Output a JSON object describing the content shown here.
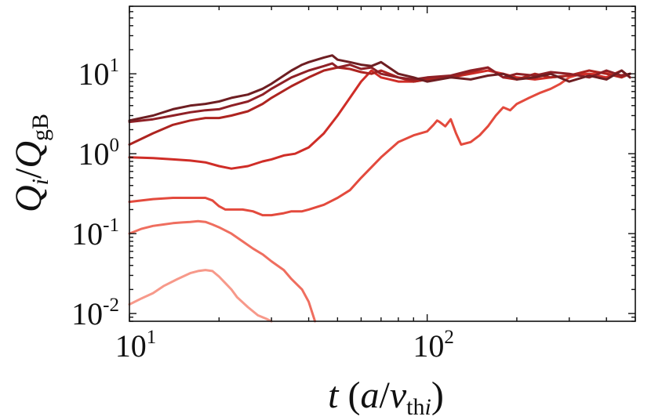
{
  "chart_data": {
    "type": "line",
    "x_scale": "log",
    "y_scale": "log",
    "xlim": [
      10,
      500
    ],
    "ylim": [
      0.008,
      70
    ],
    "grid": false,
    "legend": "none",
    "x_ticks": [
      {
        "value": 10,
        "base": "10",
        "exp": "1"
      },
      {
        "value": 100,
        "base": "10",
        "exp": "2"
      }
    ],
    "y_ticks": [
      {
        "value": 0.01,
        "base": "10",
        "exp": "-2"
      },
      {
        "value": 0.1,
        "base": "10",
        "exp": "-1"
      },
      {
        "value": 1,
        "base": "10",
        "exp": "0"
      },
      {
        "value": 10,
        "base": "10",
        "exp": "1"
      }
    ],
    "xlabel": {
      "var": "t",
      "open": " (",
      "num": "a",
      "slash": "/",
      "v": "v",
      "sub": "th",
      "subi": "i",
      "close": ")"
    },
    "ylabel": {
      "q1": "Q",
      "sub1": "i",
      "slash": "/",
      "q2": "Q",
      "sub2": "gB"
    },
    "series": [
      {
        "color": "#f7998a",
        "x": [
          10,
          11,
          12,
          13,
          14.5,
          16,
          17,
          18,
          19,
          20,
          21,
          22,
          23,
          25,
          27,
          29,
          30
        ],
        "y": [
          0.013,
          0.0155,
          0.018,
          0.022,
          0.027,
          0.032,
          0.034,
          0.035,
          0.034,
          0.029,
          0.024,
          0.02,
          0.016,
          0.012,
          0.0095,
          0.0085,
          0.008
        ]
      },
      {
        "color": "#ef6e5f",
        "x": [
          10,
          11,
          12,
          13,
          14,
          15,
          16,
          17,
          18,
          19,
          20,
          22,
          24,
          26,
          28,
          30,
          33,
          35,
          38,
          40,
          42
        ],
        "y": [
          0.1,
          0.115,
          0.125,
          0.13,
          0.135,
          0.138,
          0.14,
          0.143,
          0.14,
          0.13,
          0.12,
          0.1,
          0.08,
          0.065,
          0.055,
          0.045,
          0.035,
          0.027,
          0.02,
          0.014,
          0.008
        ]
      },
      {
        "color": "#e34a3d",
        "x": [
          10,
          12,
          14,
          16,
          18,
          19,
          20,
          21,
          22,
          24,
          26,
          28,
          30,
          33,
          35,
          38,
          40,
          45,
          50,
          55,
          60,
          70,
          80,
          90,
          100,
          105,
          108,
          110,
          115,
          120,
          125,
          130,
          140,
          150,
          160,
          170,
          180,
          190,
          200,
          220,
          240,
          260,
          280,
          300,
          330,
          360,
          400,
          440,
          480
        ],
        "y": [
          0.25,
          0.27,
          0.28,
          0.28,
          0.28,
          0.26,
          0.22,
          0.2,
          0.2,
          0.2,
          0.19,
          0.17,
          0.17,
          0.18,
          0.19,
          0.19,
          0.2,
          0.23,
          0.28,
          0.35,
          0.5,
          0.9,
          1.4,
          1.7,
          1.9,
          2.3,
          2.6,
          2.5,
          2.2,
          2.7,
          1.8,
          1.3,
          1.4,
          1.7,
          2.2,
          3.0,
          3.8,
          3.5,
          4.2,
          5.0,
          5.8,
          6.5,
          7.5,
          9.0,
          10.0,
          10.0,
          10.5,
          9.5,
          10.0
        ]
      },
      {
        "color": "#cf2d27",
        "x": [
          10,
          12,
          14,
          16,
          18,
          20,
          22,
          25,
          28,
          30,
          33,
          36,
          40,
          45,
          50,
          55,
          60,
          65,
          70,
          75,
          80,
          90,
          100,
          120,
          140,
          160,
          180,
          200,
          230,
          260,
          300,
          350,
          400,
          450,
          480
        ],
        "y": [
          0.9,
          0.88,
          0.85,
          0.82,
          0.78,
          0.7,
          0.65,
          0.7,
          0.8,
          0.85,
          0.95,
          1.0,
          1.2,
          1.8,
          3.0,
          5.0,
          8.0,
          11.0,
          9.0,
          8.5,
          8.0,
          8.0,
          8.5,
          9.0,
          10.0,
          11.0,
          10.0,
          9.0,
          8.5,
          9.0,
          9.5,
          10.0,
          9.0,
          11.0,
          9.0
        ]
      },
      {
        "color": "#ad2420",
        "x": [
          10,
          12,
          14,
          16,
          18,
          20,
          22,
          25,
          28,
          30,
          35,
          40,
          45,
          50,
          55,
          60,
          65,
          70,
          80,
          90,
          100,
          120,
          140,
          160,
          180,
          200,
          230,
          260,
          300,
          350,
          400,
          450,
          480
        ],
        "y": [
          1.3,
          1.8,
          2.3,
          2.6,
          2.8,
          2.8,
          3.0,
          3.4,
          4.2,
          5.0,
          7.0,
          9.0,
          11.0,
          12.0,
          11.5,
          10.5,
          10.0,
          11.0,
          9.0,
          8.0,
          8.5,
          9.0,
          10.5,
          12.0,
          9.0,
          8.5,
          10.0,
          9.0,
          9.5,
          11.0,
          10.0,
          9.0,
          10.0
        ]
      },
      {
        "color": "#8f2026",
        "x": [
          10,
          12,
          14,
          16,
          18,
          20,
          22,
          25,
          28,
          30,
          35,
          40,
          45,
          48,
          50,
          55,
          60,
          65,
          70,
          80,
          90,
          100,
          120,
          140,
          160,
          180,
          200,
          230,
          260,
          300,
          350,
          400,
          450,
          480
        ],
        "y": [
          2.5,
          2.7,
          3.0,
          3.3,
          3.5,
          3.6,
          4.0,
          4.5,
          5.5,
          6.5,
          9.0,
          11.0,
          12.5,
          13.5,
          12.0,
          13.0,
          11.5,
          12.0,
          10.0,
          9.0,
          8.5,
          9.0,
          9.5,
          11.0,
          12.0,
          9.0,
          10.0,
          9.5,
          10.5,
          10.0,
          9.0,
          11.0,
          9.5,
          10.0
        ]
      },
      {
        "color": "#6e1e22",
        "x": [
          10,
          12,
          14,
          16,
          18,
          20,
          22,
          25,
          28,
          30,
          33,
          35,
          38,
          40,
          45,
          48,
          50,
          55,
          60,
          65,
          70,
          80,
          90,
          100,
          120,
          140,
          160,
          180,
          200,
          230,
          260,
          300,
          350,
          400,
          450,
          480
        ],
        "y": [
          2.6,
          3.0,
          3.6,
          4.0,
          4.2,
          4.5,
          5.0,
          5.5,
          6.5,
          7.5,
          9.5,
          11.0,
          13.0,
          14.0,
          16.0,
          17.0,
          15.0,
          14.0,
          13.0,
          12.5,
          14.0,
          10.0,
          9.0,
          8.0,
          9.0,
          8.5,
          9.5,
          10.0,
          8.5,
          9.0,
          10.0,
          8.0,
          9.5,
          8.5,
          11.0,
          9.0
        ]
      }
    ]
  }
}
